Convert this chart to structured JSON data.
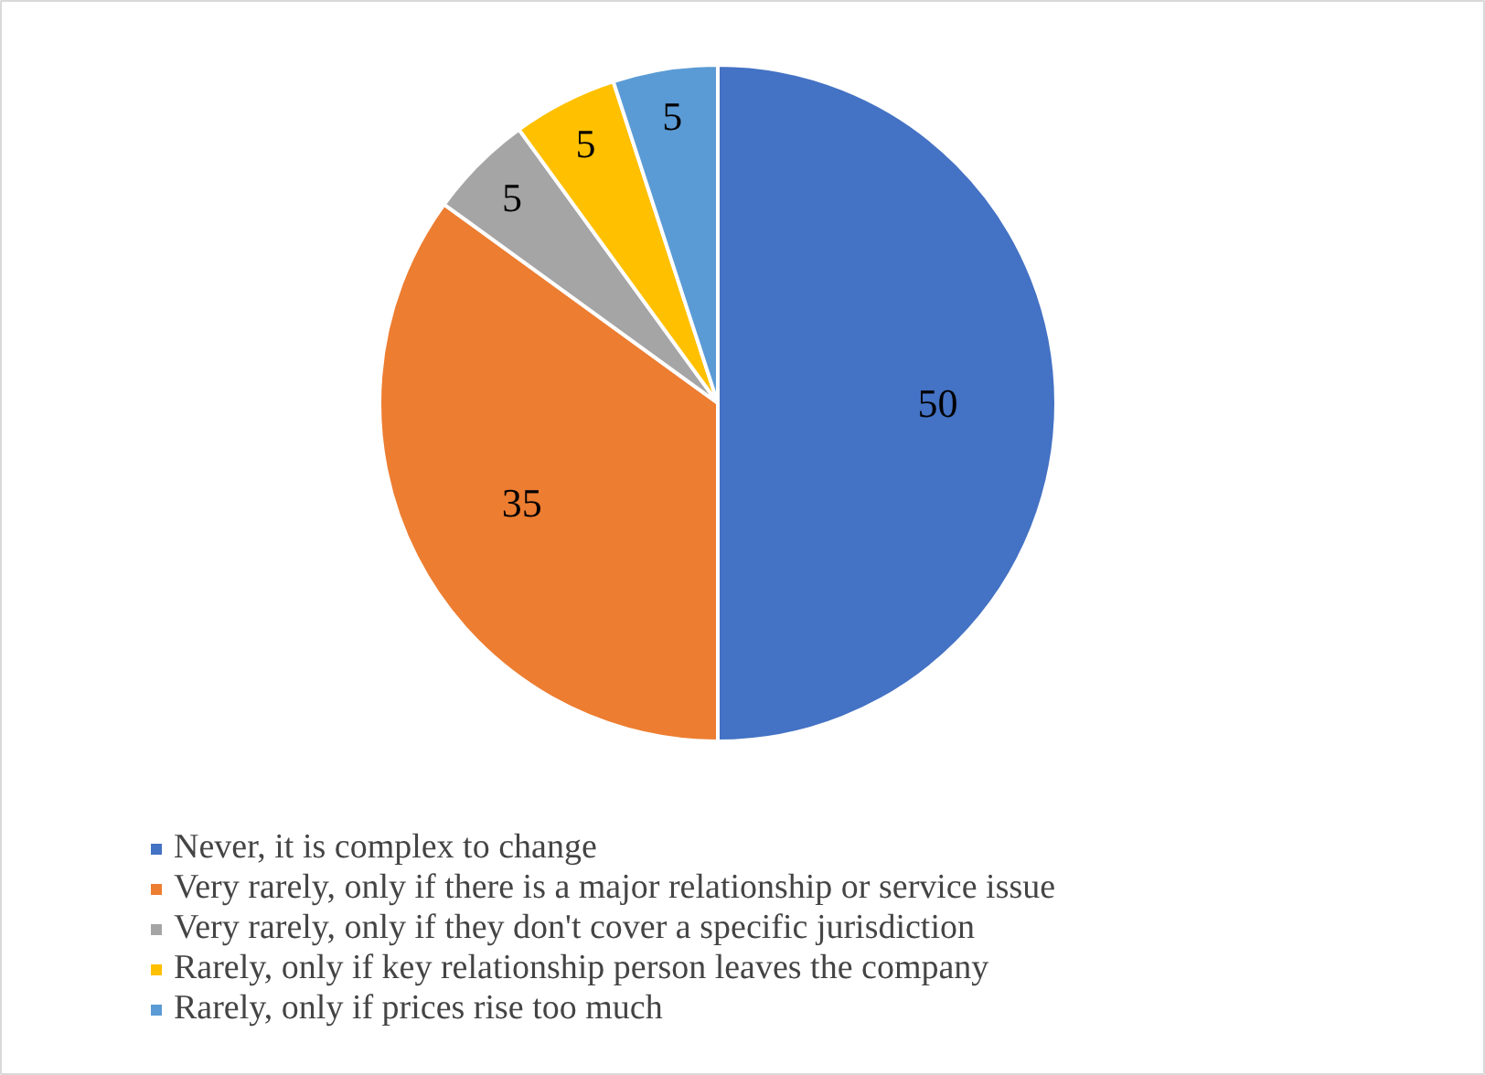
{
  "chart_data": {
    "type": "pie",
    "categories": [
      "Never, it is complex to change",
      "Very rarely, only if there is a major relationship or service issue",
      "Very rarely, only if they don't cover a specific jurisdiction",
      "Rarely, only if key relationship person leaves the company",
      "Rarely, only if prices rise too much"
    ],
    "values": [
      50,
      35,
      5,
      5,
      5
    ],
    "colors": [
      "#4472c4",
      "#ed7d31",
      "#a5a5a5",
      "#ffc000",
      "#5b9bd5"
    ],
    "data_labels": true,
    "legend": "bottom"
  }
}
